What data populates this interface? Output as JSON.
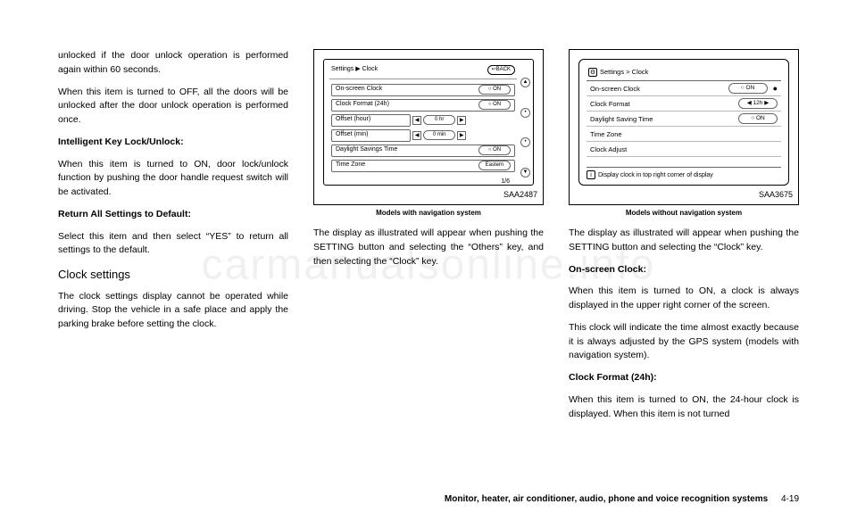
{
  "col1": {
    "p1": "unlocked if the door unlock operation is performed again within 60 seconds.",
    "p2": "When this item is turned to OFF, all the doors will be unlocked after the door unlock operation is performed once.",
    "h1": "Intelligent Key Lock/Unlock:",
    "p3": "When this item is turned to ON, door lock/unlock function by pushing the door handle request switch will be activated.",
    "h2": "Return All Settings to Default:",
    "p4": "Select this item and then select “YES” to return all settings to the default.",
    "h3": "Clock settings",
    "p5": "The clock settings display cannot be operated while driving. Stop the vehicle in a safe place and apply the parking brake before setting the clock."
  },
  "fig1": {
    "code": "SAA2487",
    "caption": "Models with navigation system",
    "breadcrumb": "Settings  ▶ Clock",
    "back": "↩BACK",
    "rows": {
      "r1": {
        "label": "On-screen Clock",
        "value": "○ ON"
      },
      "r2": {
        "label": "Clock Format (24h)",
        "value": "○ ON"
      },
      "r3": {
        "label": "Offset (hour)",
        "value": "0 hr"
      },
      "r4": {
        "label": "Offset (min)",
        "value": "0 min"
      },
      "r5": {
        "label": "Daylight Savings Time",
        "value": "○ ON"
      },
      "r6": {
        "label": "Time Zone",
        "value": "Eastern"
      }
    },
    "page": "1/6"
  },
  "col2": {
    "p1": "The display as illustrated will appear when pushing the SETTING button and selecting the “Others” key, and then selecting the “Clock” key."
  },
  "fig2": {
    "code": "SAA3675",
    "caption": "Models without navigation system",
    "breadcrumb": "Settings > Clock",
    "rows": {
      "r1": {
        "label": "On-screen Clock",
        "value": "○    ON"
      },
      "r2": {
        "label": "Clock Format",
        "value": "◀  12h  ▶"
      },
      "r3": {
        "label": "Daylight Saving Time",
        "value": "○    ON"
      },
      "r4": {
        "label": "Time Zone",
        "value": ""
      },
      "r5": {
        "label": "Clock Adjust",
        "value": ""
      }
    },
    "footer": "Display clock in top right corner of display"
  },
  "col3": {
    "p1": "The display as illustrated will appear when pushing the SETTING button and selecting the “Clock” key.",
    "h1": "On-screen Clock:",
    "p2": "When this item is turned to ON, a clock is always displayed in the upper right corner of the screen.",
    "p3": "This clock will indicate the time almost exactly because it is always adjusted by the GPS system (models with navigation system).",
    "h2": "Clock Format (24h):",
    "p4": "When this item is turned to ON, the 24-hour clock is displayed. When this item is not turned"
  },
  "footer": {
    "section": "Monitor, heater, air conditioner, audio, phone and voice recognition systems",
    "page": "4-19"
  },
  "watermark": "carmanualsonline.info"
}
